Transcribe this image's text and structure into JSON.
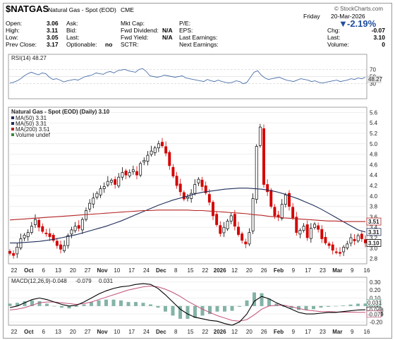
{
  "header": {
    "symbol": "$NATGAS",
    "name": "Natural Gas - Spot (EOD)",
    "exchange": "CME",
    "day": "Friday",
    "date": "20-Mar-2026",
    "credit": "© StockCharts.com",
    "change_pct": "-2.19%",
    "quote": [
      {
        "label": "Open:",
        "value": "3.06"
      },
      {
        "label": "High:",
        "value": "3.11"
      },
      {
        "label": "Low:",
        "value": "3.05"
      },
      {
        "label": "Prev Close:",
        "value": "3.17"
      }
    ],
    "mid1": [
      {
        "label": "Ask:",
        "value": ""
      },
      {
        "label": "Bid:",
        "value": ""
      },
      {
        "label": "Last:",
        "value": ""
      },
      {
        "label": "Optionable:",
        "value": "no"
      }
    ],
    "mid2": [
      {
        "label": "Mkt Cap:",
        "value": ""
      },
      {
        "label": "Fwd Dividend:",
        "value": "N/A"
      },
      {
        "label": "Fwd Yield:",
        "value": "N/A"
      },
      {
        "label": "SCTR:",
        "value": ""
      }
    ],
    "mid3": [
      {
        "label": "P/E:",
        "value": ""
      },
      {
        "label": "EPS:",
        "value": ""
      },
      {
        "label": "Last Earnings:",
        "value": ""
      },
      {
        "label": "Next Earnings:",
        "value": ""
      }
    ],
    "right": [
      {
        "label": "Chg:",
        "value": "-0.07"
      },
      {
        "label": "Last:",
        "value": "3.10"
      },
      {
        "label": "Volume:",
        "value": "0"
      }
    ]
  },
  "colors": {
    "up": "#000000",
    "down": "#d40000",
    "ma50": "#1f2d5a",
    "ma200": "#b52525",
    "macd": "#000000",
    "signal": "#c2507a",
    "histogram": "#5a9a8a",
    "rsi": "#4a6fa8"
  },
  "chart_data": [
    {
      "type": "line",
      "title": "RSI(14) 48.27",
      "ylim": [
        0,
        100
      ],
      "y_ticks": [
        "70",
        "50",
        "30"
      ],
      "last_value": "48.27",
      "series": [
        {
          "name": "RSI(14)",
          "values": [
            32,
            34,
            38,
            44,
            52,
            58,
            62,
            58,
            55,
            60,
            58,
            48,
            42,
            44,
            40,
            35,
            38,
            40,
            42,
            40,
            45,
            50,
            52,
            55,
            60,
            58,
            56,
            62,
            64,
            60,
            66,
            68,
            70,
            66,
            64,
            62,
            70,
            72,
            64,
            52,
            50,
            48,
            50,
            54,
            52,
            50,
            48,
            50,
            52,
            46,
            44,
            42,
            40,
            38,
            36,
            42,
            38,
            36,
            40,
            36,
            34,
            32,
            34,
            38,
            36,
            30,
            34,
            48,
            62,
            66,
            54,
            46,
            42,
            44,
            46,
            48,
            44,
            40,
            38,
            36,
            40,
            44,
            42,
            40,
            36,
            38,
            34,
            32,
            34,
            36,
            38,
            40,
            36,
            38,
            40,
            44,
            42,
            46,
            44,
            48
          ]
        }
      ]
    },
    {
      "type": "candlestick",
      "title": "Natural Gas - Spot (EOD) (Daily) 3.10",
      "legend": [
        "MA(50) 3.31",
        "MA(50) 3.31",
        "MA(200) 3.51",
        "Volume undef"
      ],
      "ylim": [
        2.7,
        5.7
      ],
      "y_ticks": [
        "5.6",
        "5.4",
        "5.2",
        "5.0",
        "4.8",
        "4.6",
        "4.4",
        "4.2",
        "4.0",
        "3.8",
        "3.6",
        "3.4",
        "3.2",
        "3.0",
        "2.8"
      ],
      "badges": [
        {
          "name": "MA(200)",
          "value": "3.51"
        },
        {
          "name": "MA(50)",
          "value": "3.31"
        },
        {
          "name": "Last",
          "value": "3.10"
        }
      ],
      "x_tick_labels": [
        "22",
        "Oct",
        "6",
        "13",
        "20",
        "27",
        "Nov",
        "10",
        "17",
        "24",
        "Dec",
        "8",
        "15",
        "22",
        "2026",
        "12",
        "20",
        "26",
        "Feb",
        "9",
        "17",
        "23",
        "Mar",
        "9",
        "16"
      ],
      "close": [
        2.9,
        2.86,
        3.02,
        3.18,
        3.25,
        3.3,
        3.42,
        3.55,
        3.4,
        3.32,
        3.28,
        3.22,
        3.15,
        3.05,
        2.98,
        3.05,
        3.24,
        3.35,
        3.42,
        3.38,
        3.55,
        3.72,
        3.86,
        3.96,
        4.05,
        4.14,
        4.18,
        4.28,
        4.3,
        4.22,
        4.36,
        4.45,
        4.4,
        4.45,
        4.5,
        4.4,
        4.62,
        4.68,
        4.78,
        4.86,
        4.92,
        5.0,
        4.96,
        4.82,
        4.58,
        4.38,
        4.2,
        4.08,
        3.94,
        3.98,
        4.05,
        4.22,
        4.32,
        4.18,
        4.06,
        3.88,
        3.62,
        3.45,
        3.28,
        3.4,
        3.52,
        3.62,
        3.42,
        3.26,
        3.15,
        3.08,
        3.3,
        3.95,
        4.95,
        5.32,
        4.22,
        4.08,
        3.8,
        3.62,
        3.6,
        3.84,
        4.02,
        3.8,
        3.58,
        3.3,
        3.34,
        3.42,
        3.2,
        3.38,
        3.46,
        3.36,
        3.18,
        3.1,
        3.05,
        2.96,
        2.92,
        2.9,
        3.02,
        3.08,
        3.2,
        3.14,
        3.24,
        3.18,
        3.1
      ],
      "ma50": [
        3.1,
        3.1,
        3.11,
        3.12,
        3.13,
        3.15,
        3.17,
        3.2,
        3.23,
        3.26,
        3.3,
        3.34,
        3.38,
        3.42,
        3.47,
        3.52,
        3.58,
        3.64,
        3.7,
        3.76,
        3.82,
        3.87,
        3.92,
        3.96,
        4.0,
        4.04,
        4.07,
        4.09,
        4.11,
        4.13,
        4.14,
        4.15,
        4.15,
        4.14,
        4.13,
        4.11,
        4.08,
        4.04,
        3.99,
        3.94,
        3.88,
        3.82,
        3.75,
        3.67,
        3.59,
        3.51,
        3.43,
        3.35,
        3.31
      ],
      "ma200": [
        3.54,
        3.55,
        3.56,
        3.57,
        3.58,
        3.59,
        3.6,
        3.61,
        3.62,
        3.63,
        3.64,
        3.65,
        3.66,
        3.67,
        3.68,
        3.69,
        3.7,
        3.71,
        3.72,
        3.72,
        3.73,
        3.73,
        3.73,
        3.73,
        3.73,
        3.72,
        3.72,
        3.71,
        3.7,
        3.69,
        3.68,
        3.67,
        3.66,
        3.64,
        3.63,
        3.61,
        3.6,
        3.58,
        3.57,
        3.56,
        3.55,
        3.54,
        3.53,
        3.52,
        3.52,
        3.51,
        3.51,
        3.51,
        3.51
      ]
    },
    {
      "type": "line",
      "title": "MACD(12,26,9)",
      "values_text": [
        "-0.048",
        "-0.079",
        "0.031"
      ],
      "ylim": [
        -0.24,
        0.36
      ],
      "y_ticks": [
        "0.30",
        "0.20",
        "0.10",
        "0.00",
        "-0.10",
        "-0.20"
      ],
      "badges": [
        "0.031",
        "-0.048",
        "-0.079"
      ],
      "series": [
        {
          "name": "MACD",
          "values": [
            -0.02,
            0.0,
            0.04,
            0.08,
            0.1,
            0.08,
            0.05,
            0.02,
            0.0,
            0.01,
            0.05,
            0.1,
            0.15,
            0.19,
            0.22,
            0.24,
            0.25,
            0.27,
            0.28,
            0.27,
            0.22,
            0.14,
            0.05,
            -0.04,
            -0.1,
            -0.14,
            -0.16,
            -0.18,
            -0.19,
            -0.22,
            -0.24,
            -0.2,
            -0.1,
            0.06,
            0.12,
            0.09,
            0.04,
            0.0,
            -0.04,
            -0.08,
            -0.1,
            -0.1,
            -0.09,
            -0.08,
            -0.08,
            -0.07,
            -0.06,
            -0.05,
            -0.048
          ]
        },
        {
          "name": "Signal",
          "values": [
            -0.05,
            -0.04,
            -0.02,
            0.01,
            0.04,
            0.05,
            0.05,
            0.04,
            0.03,
            0.02,
            0.03,
            0.05,
            0.08,
            0.11,
            0.14,
            0.17,
            0.2,
            0.22,
            0.24,
            0.25,
            0.24,
            0.21,
            0.17,
            0.12,
            0.06,
            0.01,
            -0.04,
            -0.08,
            -0.12,
            -0.15,
            -0.18,
            -0.19,
            -0.17,
            -0.11,
            -0.04,
            0.0,
            0.01,
            0.01,
            -0.01,
            -0.03,
            -0.05,
            -0.06,
            -0.07,
            -0.07,
            -0.075,
            -0.077,
            -0.078,
            -0.079,
            -0.079
          ]
        }
      ]
    }
  ]
}
